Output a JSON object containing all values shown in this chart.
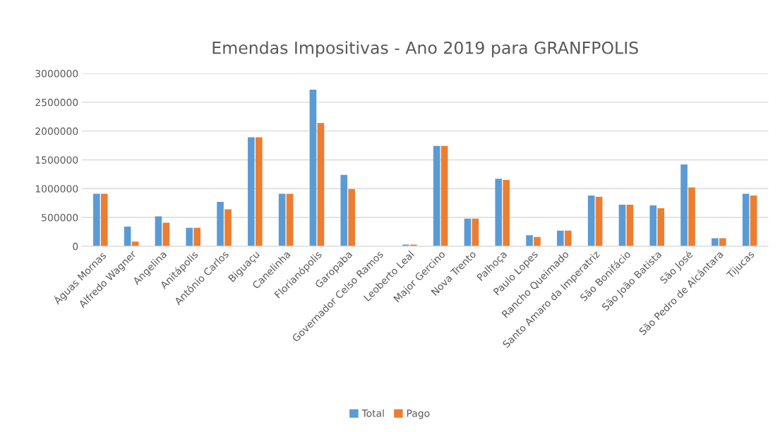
{
  "chart_data": {
    "type": "bar",
    "title": "Emendas Impositivas - Ano 2019 para GRANFPOLIS",
    "categories": [
      "Águas Mornas",
      "Alfredo Wagner",
      "Angelina",
      "Anitápolis",
      "Antônio Carlos",
      "Biguaçu",
      "Canelinha",
      "Florianópolis",
      "Garopaba",
      "Governador Celso Ramos",
      "Leoberto Leal",
      "Major Gercino",
      "Nova Trento",
      "Palhoça",
      "Paulo Lopes",
      "Rancho Queimado",
      "Santo Amaro da Imperatriz",
      "São Bonifácio",
      "São João Batista",
      "São José",
      "São Pedro de Alcântara",
      "Tijucas"
    ],
    "series": [
      {
        "name": "Total",
        "color": "#5b9bd5",
        "values": [
          910000,
          340000,
          520000,
          320000,
          770000,
          1890000,
          910000,
          2720000,
          1240000,
          0,
          30000,
          1740000,
          480000,
          1170000,
          190000,
          270000,
          880000,
          720000,
          710000,
          1420000,
          140000,
          910000
        ]
      },
      {
        "name": "Pago",
        "color": "#ed7d31",
        "values": [
          910000,
          80000,
          410000,
          320000,
          640000,
          1890000,
          910000,
          2140000,
          990000,
          0,
          30000,
          1740000,
          480000,
          1150000,
          160000,
          270000,
          860000,
          720000,
          660000,
          1020000,
          140000,
          880000
        ]
      }
    ],
    "ylim": [
      0,
      3000000
    ],
    "yticks": [
      0,
      500000,
      1000000,
      1500000,
      2000000,
      2500000,
      3000000
    ],
    "grid": "y",
    "legend": "bottom"
  }
}
